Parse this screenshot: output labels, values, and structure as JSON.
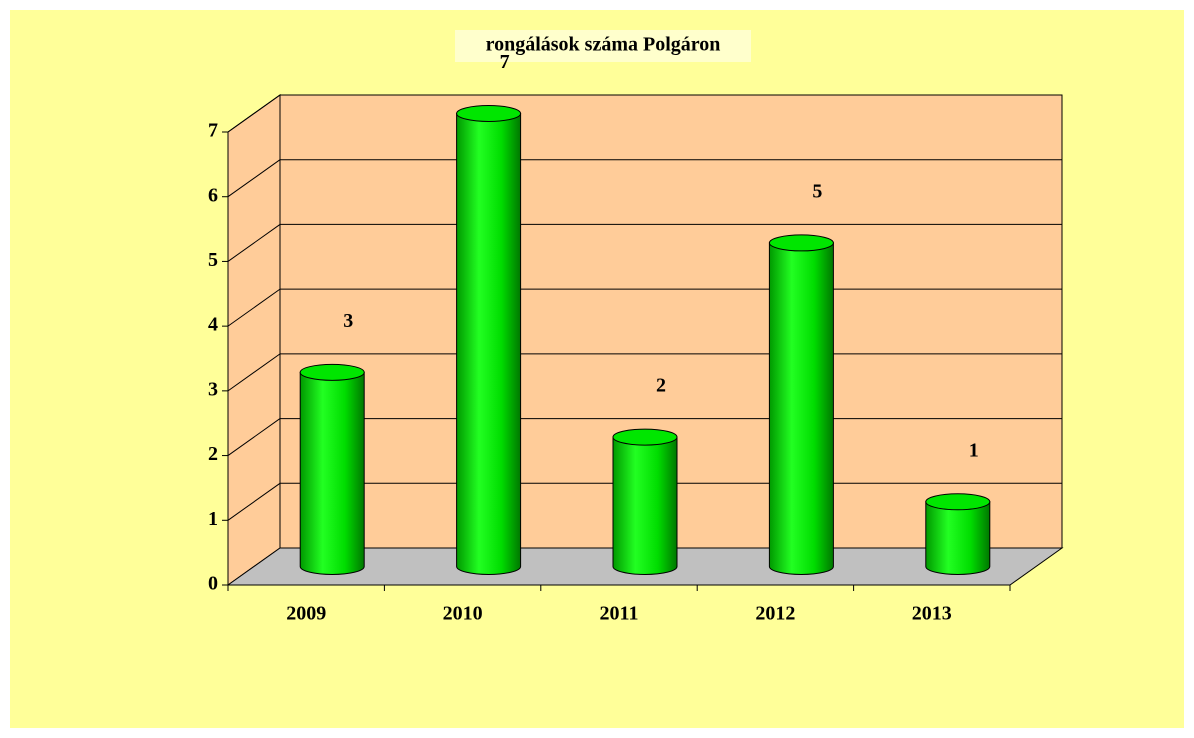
{
  "chart_data": {
    "type": "bar",
    "title": "rongálások száma Polgáron",
    "categories": [
      "2009",
      "2010",
      "2011",
      "2012",
      "2013"
    ],
    "values": [
      3,
      7,
      2,
      5,
      1
    ],
    "color": "#00e600",
    "ylim": [
      0,
      7
    ],
    "yticks": [
      0,
      1,
      2,
      3,
      4,
      5,
      6,
      7
    ],
    "grid": true
  }
}
